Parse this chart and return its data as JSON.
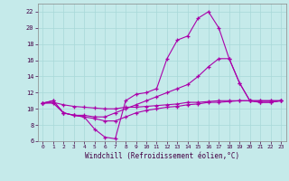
{
  "xlabel": "Windchill (Refroidissement éolien,°C)",
  "background_color": "#c5eaea",
  "line_color": "#aa00aa",
  "xlim": [
    -0.5,
    23.5
  ],
  "ylim": [
    6,
    23
  ],
  "yticks": [
    6,
    8,
    10,
    12,
    14,
    16,
    18,
    20,
    22
  ],
  "xticks": [
    0,
    1,
    2,
    3,
    4,
    5,
    6,
    7,
    8,
    9,
    10,
    11,
    12,
    13,
    14,
    15,
    16,
    17,
    18,
    19,
    20,
    21,
    22,
    23
  ],
  "line1_x": [
    0,
    1,
    2,
    3,
    4,
    5,
    6,
    7,
    8,
    9,
    10,
    11,
    12,
    13,
    14,
    15,
    16,
    17,
    18,
    19,
    20,
    21,
    22,
    23
  ],
  "line1_y": [
    10.7,
    11.0,
    9.5,
    9.2,
    9.0,
    7.5,
    6.5,
    6.3,
    11.0,
    11.8,
    12.0,
    12.5,
    16.2,
    18.5,
    19.0,
    21.2,
    22.0,
    20.0,
    16.2,
    13.2,
    11.0,
    10.8,
    10.8,
    11.0
  ],
  "line2_x": [
    0,
    1,
    2,
    3,
    4,
    5,
    6,
    7,
    8,
    9,
    10,
    11,
    12,
    13,
    14,
    15,
    16,
    17,
    18,
    19,
    20,
    21,
    22,
    23
  ],
  "line2_y": [
    10.7,
    11.0,
    9.5,
    9.2,
    9.2,
    9.0,
    9.0,
    9.5,
    10.0,
    10.5,
    11.0,
    11.5,
    12.0,
    12.5,
    13.0,
    14.0,
    15.2,
    16.2,
    16.2,
    13.2,
    11.0,
    10.8,
    10.8,
    11.0
  ],
  "line3_x": [
    0,
    1,
    2,
    3,
    4,
    5,
    6,
    7,
    8,
    9,
    10,
    11,
    12,
    13,
    14,
    15,
    16,
    17,
    18,
    19,
    20,
    21,
    22,
    23
  ],
  "line3_y": [
    10.7,
    10.8,
    10.5,
    10.3,
    10.2,
    10.1,
    10.0,
    10.0,
    10.2,
    10.2,
    10.3,
    10.4,
    10.5,
    10.6,
    10.8,
    10.8,
    10.9,
    11.0,
    11.0,
    11.0,
    11.0,
    11.0,
    11.0,
    11.0
  ],
  "line4_x": [
    0,
    1,
    2,
    3,
    4,
    5,
    6,
    7,
    8,
    9,
    10,
    11,
    12,
    13,
    14,
    15,
    16,
    17,
    18,
    19,
    20,
    21,
    22,
    23
  ],
  "line4_y": [
    10.7,
    10.7,
    9.5,
    9.2,
    9.0,
    8.8,
    8.5,
    8.5,
    9.0,
    9.5,
    9.8,
    10.0,
    10.2,
    10.3,
    10.5,
    10.6,
    10.8,
    10.8,
    10.9,
    11.0,
    11.0,
    11.0,
    11.0,
    11.0
  ]
}
